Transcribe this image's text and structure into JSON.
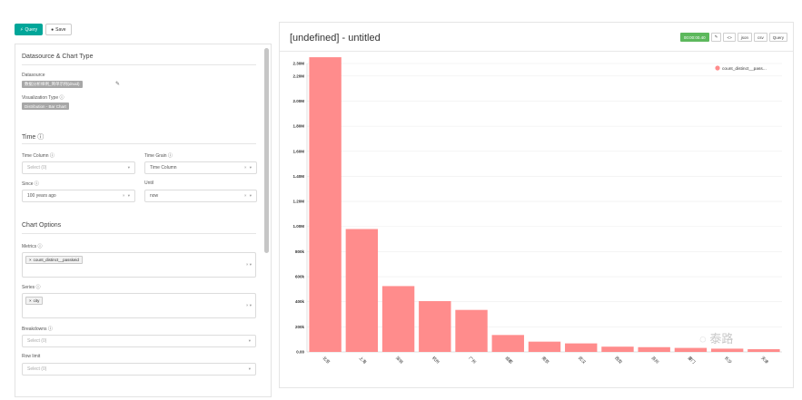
{
  "top_buttons": {
    "query": "Query",
    "save": "Save"
  },
  "datasource_section": {
    "title": "Datasource & Chart Type",
    "datasource_label": "Datasource",
    "datasource_value": "数据分析样例_简单示例(druid)",
    "viz_label": "Visualization Type ⓘ",
    "viz_value": "Distribution - Bar Chart"
  },
  "time_section": {
    "title": "Time ⓘ",
    "time_column_label": "Time Column ⓘ",
    "time_column_placeholder": "Select (0)",
    "time_grain_label": "Time Grain ⓘ",
    "time_grain_value": "Time Column",
    "since_label": "Since ⓘ",
    "since_value": "100 years ago",
    "until_label": "Until",
    "until_value": "now"
  },
  "chart_options": {
    "title": "Chart Options",
    "metrics_label": "Metrics ⓘ",
    "metric_tag": "count_distinct__passkeid",
    "series_label": "Series ⓘ",
    "series_tag": "city",
    "breakdowns_label": "Breakdowns ⓘ",
    "breakdowns_placeholder": "Select (0)",
    "rowlimit_label": "Row limit",
    "rowlimit_placeholder": "Select (0)"
  },
  "right_panel": {
    "title": "[undefined] - untitled",
    "toolbar": [
      "00:00:00.40",
      "✎",
      "<>",
      "json",
      "csv",
      "Query"
    ]
  },
  "colors": {
    "bar": "#ff8c8c",
    "primary": "#00a699",
    "badge": "#5cb85c"
  },
  "watermark": "泰路",
  "chart_data": {
    "type": "bar",
    "title": "",
    "xlabel": "",
    "ylabel": "",
    "ylim": [
      0,
      2300000
    ],
    "yticks": [
      "0.00",
      "200k",
      "400k",
      "600k",
      "800k",
      "1.00M",
      "1.20M",
      "1.40M",
      "1.60M",
      "1.80M",
      "2.00M",
      "2.20M",
      "2.30M"
    ],
    "ytick_values": [
      0,
      200000,
      400000,
      600000,
      800000,
      1000000,
      1200000,
      1400000,
      1600000,
      1800000,
      2000000,
      2200000,
      2300000
    ],
    "legend": "count_distinct__pass...",
    "legend_position": "top-right",
    "grid": true,
    "categories": [
      "北京",
      "上海",
      "深圳",
      "杭州",
      "广州",
      "成都",
      "南京",
      "武汉",
      "西安",
      "苏州",
      "厦门",
      "长沙",
      "天津"
    ],
    "series": [
      {
        "name": "count_distinct__pass...",
        "values": [
          2350000,
          980000,
          525000,
          405000,
          335000,
          135000,
          82000,
          68000,
          42000,
          38000,
          32000,
          26000,
          22000
        ]
      }
    ]
  }
}
